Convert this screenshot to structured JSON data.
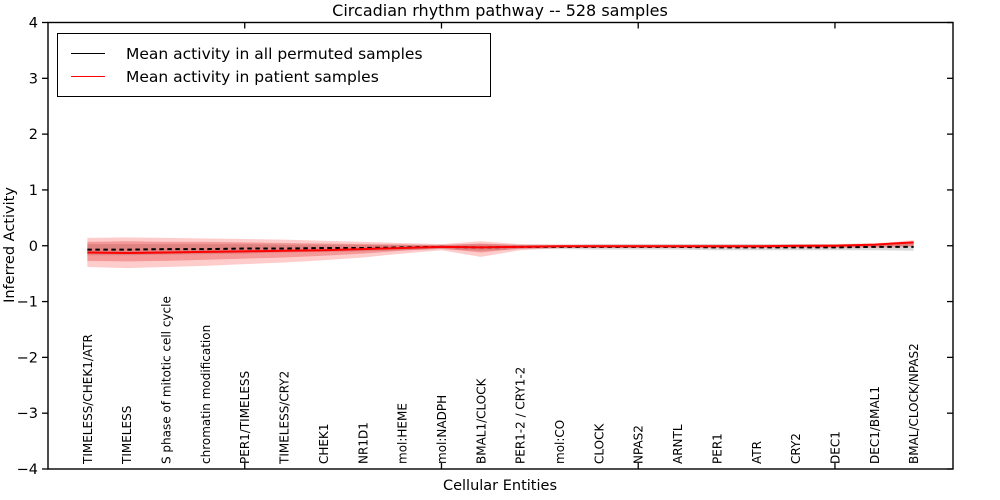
{
  "title": "Circadian rhythm pathway -- 528 samples",
  "legend": {
    "items": [
      {
        "label": "Mean activity in all permuted samples",
        "color": "#000000"
      },
      {
        "label": "Mean activity in patient samples",
        "color": "#ff0000"
      }
    ]
  },
  "chart_data": {
    "type": "line",
    "title": "Circadian rhythm pathway -- 528 samples",
    "xlabel": "Cellular Entities",
    "ylabel": "Inferred Activity",
    "ylim": [
      -4,
      4
    ],
    "yticks": [
      -4,
      -3,
      -2,
      -1,
      0,
      1,
      2,
      3,
      4
    ],
    "xlim": [
      0,
      23
    ],
    "xticks_unlabeled": [
      5,
      10,
      15,
      20
    ],
    "grid": false,
    "legend_position": "upper left",
    "categories": [
      "TIMELESS/CHEK1/ATR",
      "TIMELESS",
      "S phase of mitotic cell cycle",
      "chromatin modification",
      "PER1/TIMELESS",
      "TIMELESS/CRY2",
      "CHEK1",
      "NR1D1",
      "mol:HEME",
      "mol:NADPH",
      "BMAL1/CLOCK",
      "PER1-2 / CRY1-2",
      "mol:CO",
      "CLOCK",
      "NPAS2",
      "ARNTL",
      "PER1",
      "ATR",
      "CRY2",
      "DEC1",
      "DEC1/BMAL1",
      "BMAL/CLOCK/NPAS2"
    ],
    "series": [
      {
        "name": "Mean activity in all permuted samples",
        "color": "#000000",
        "style": "dashed",
        "values": [
          -0.07,
          -0.07,
          -0.06,
          -0.06,
          -0.05,
          -0.05,
          -0.04,
          -0.04,
          -0.03,
          -0.02,
          -0.03,
          -0.02,
          -0.02,
          -0.02,
          -0.02,
          -0.02,
          -0.03,
          -0.03,
          -0.03,
          -0.03,
          -0.02,
          -0.02
        ]
      },
      {
        "name": "Mean activity in patient samples",
        "color": "#ff0000",
        "style": "solid",
        "values": [
          -0.12,
          -0.13,
          -0.12,
          -0.11,
          -0.1,
          -0.09,
          -0.08,
          -0.06,
          -0.04,
          -0.02,
          -0.03,
          -0.02,
          -0.01,
          -0.01,
          -0.01,
          -0.01,
          -0.01,
          -0.01,
          0.0,
          0.0,
          0.02,
          0.06
        ]
      }
    ],
    "bands": [
      {
        "name": "permuted-std-band",
        "color": "#888888",
        "opacity": 0.32,
        "hi": [
          0.03,
          0.03,
          0.03,
          0.03,
          0.03,
          0.02,
          0.02,
          0.02,
          0.02,
          0.02,
          0.03,
          0.02,
          0.02,
          0.03,
          0.03,
          0.03,
          0.03,
          0.03,
          0.03,
          0.03,
          0.04,
          0.05
        ],
        "lo": [
          -0.17,
          -0.17,
          -0.16,
          -0.15,
          -0.14,
          -0.12,
          -0.11,
          -0.1,
          -0.08,
          -0.06,
          -0.09,
          -0.06,
          -0.06,
          -0.07,
          -0.07,
          -0.07,
          -0.08,
          -0.08,
          -0.08,
          -0.08,
          -0.08,
          -0.09
        ]
      },
      {
        "name": "patient-std-outer-band",
        "color": "#ff0000",
        "opacity": 0.2,
        "hi": [
          0.14,
          0.15,
          0.14,
          0.13,
          0.12,
          0.11,
          0.09,
          0.07,
          0.05,
          0.03,
          0.08,
          0.03,
          0.02,
          0.02,
          0.02,
          0.02,
          0.02,
          0.02,
          0.02,
          0.03,
          0.04,
          0.1
        ],
        "lo": [
          -0.38,
          -0.4,
          -0.38,
          -0.36,
          -0.33,
          -0.3,
          -0.26,
          -0.21,
          -0.14,
          -0.08,
          -0.2,
          -0.08,
          -0.04,
          -0.04,
          -0.04,
          -0.04,
          -0.04,
          -0.04,
          -0.04,
          -0.04,
          -0.04,
          -0.02
        ]
      },
      {
        "name": "patient-std-inner-band",
        "color": "#dd2222",
        "opacity": 0.3,
        "hi": [
          0.07,
          0.08,
          0.07,
          0.07,
          0.06,
          0.05,
          0.04,
          0.03,
          0.02,
          0.01,
          0.04,
          0.01,
          0.01,
          0.01,
          0.01,
          0.01,
          0.01,
          0.01,
          0.01,
          0.01,
          0.02,
          0.08
        ],
        "lo": [
          -0.27,
          -0.28,
          -0.27,
          -0.25,
          -0.23,
          -0.21,
          -0.18,
          -0.14,
          -0.09,
          -0.05,
          -0.12,
          -0.05,
          -0.03,
          -0.03,
          -0.03,
          -0.03,
          -0.03,
          -0.03,
          -0.03,
          -0.03,
          -0.02,
          0.0
        ]
      }
    ]
  }
}
